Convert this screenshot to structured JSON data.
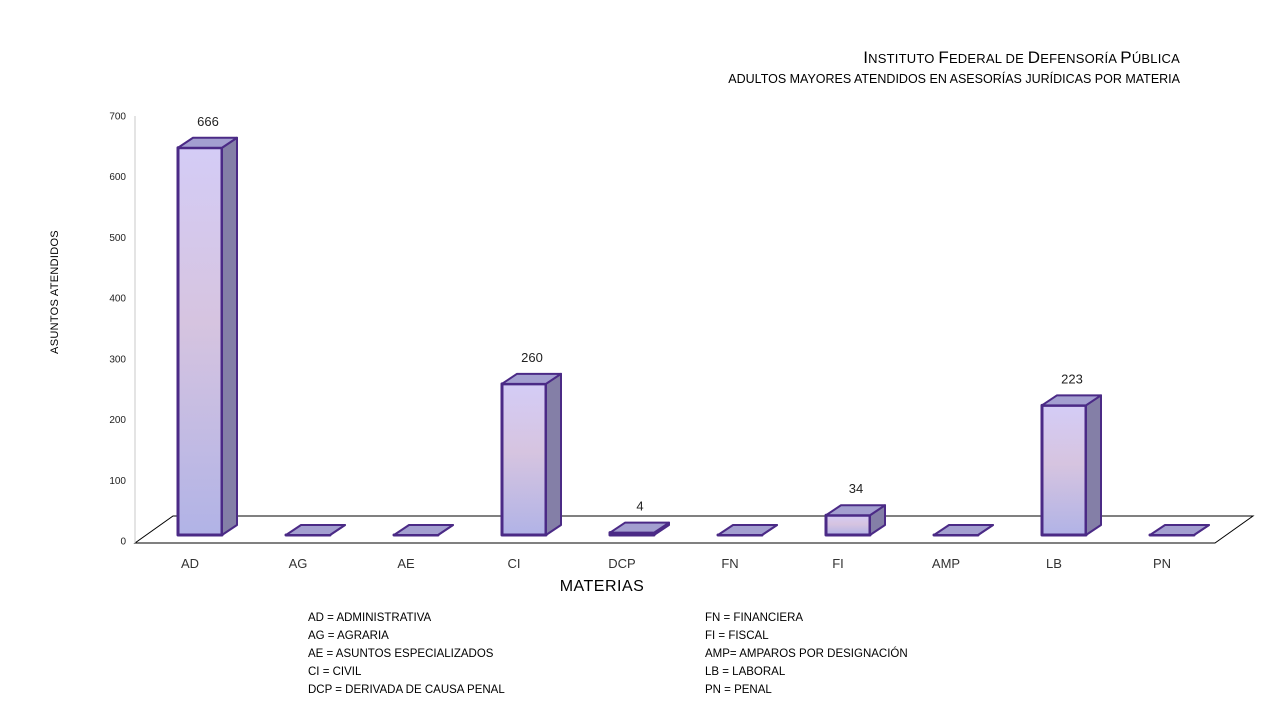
{
  "header": {
    "title_caps": [
      "I",
      "F",
      "D",
      "P"
    ],
    "title_parts": [
      "nstituto ",
      "ederal de ",
      "efensoría ",
      "ública"
    ],
    "subtitle": "ADULTOS MAYORES ATENDIDOS EN ASESORÍAS JURÍDICAS POR MATERIA"
  },
  "chart_data": {
    "type": "bar",
    "categories": [
      "AD",
      "AG",
      "AE",
      "CI",
      "DCP",
      "FN",
      "FI",
      "AMP",
      "LB",
      "PN"
    ],
    "values": [
      666,
      0,
      0,
      260,
      4,
      0,
      34,
      0,
      223,
      0
    ],
    "data_labels": [
      "666",
      "",
      "",
      "260",
      "4",
      "",
      "34",
      "",
      "223",
      ""
    ],
    "xlabel": "MATERIAS",
    "ylabel": "ASUNTOS ATENDIDOS",
    "ylim": [
      0,
      700
    ],
    "yticks": [
      0,
      100,
      200,
      300,
      400,
      500,
      600,
      700
    ],
    "grid": false,
    "colors": {
      "bar_top": "#d4ccf6",
      "bar_mid": "#d6c4e0",
      "bar_bottom": "#b1b3e6",
      "bar_side": "#847fa7",
      "bar_cap": "#a39fd0",
      "outline": "#4b2a86"
    }
  },
  "legend": {
    "left": [
      "AD = ADMINISTRATIVA",
      "AG = AGRARIA",
      "AE = ASUNTOS  ESPECIALIZADOS",
      "CI = CIVIL",
      "DCP =  DERIVADA DE CAUSA  PENAL"
    ],
    "right": [
      "FN = FINANCIERA",
      "FI = FISCAL",
      "AMP= AMPAROS  POR DESIGNACIÓN",
      "LB = LABORAL",
      "PN = PENAL"
    ]
  }
}
